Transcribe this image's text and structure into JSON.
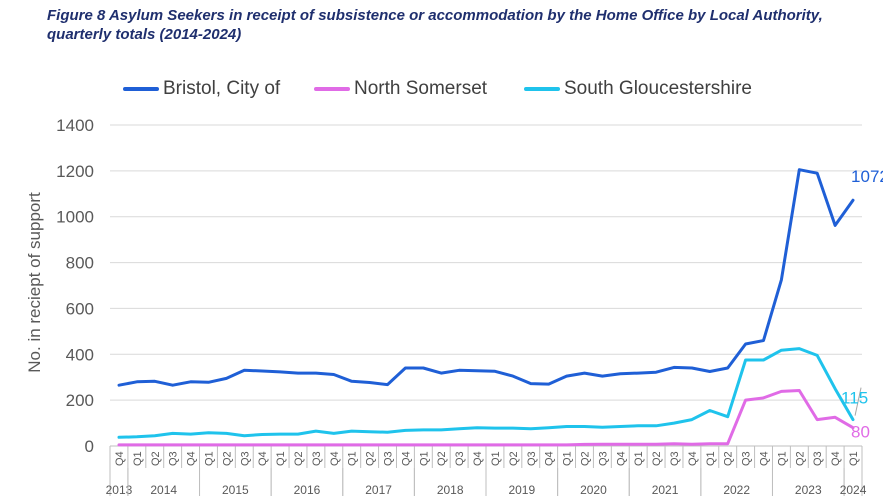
{
  "title": "Figure 8 Asylum Seekers in receipt of subsistence or accommodation by the Home Office by Local Authority, quarterly totals (2014-2024)",
  "chart_data": {
    "type": "line",
    "title": "Figure 8 Asylum Seekers in receipt of subsistence or accommodation by the Home Office by Local Authority, quarterly totals (2014-2024)",
    "ylabel": "No. in reciept of support",
    "xlabel": "",
    "ylim": [
      0,
      1400
    ],
    "yticks": [
      0,
      200,
      400,
      600,
      800,
      1000,
      1200,
      1400
    ],
    "grid": true,
    "legend_position": "top",
    "quarters": [
      "Q4",
      "Q1",
      "Q2",
      "Q3",
      "Q4",
      "Q1",
      "Q2",
      "Q3",
      "Q4",
      "Q1",
      "Q2",
      "Q3",
      "Q4",
      "Q1",
      "Q2",
      "Q3",
      "Q4",
      "Q1",
      "Q2",
      "Q3",
      "Q4",
      "Q1",
      "Q2",
      "Q3",
      "Q4",
      "Q1",
      "Q2",
      "Q3",
      "Q4",
      "Q1",
      "Q2",
      "Q3",
      "Q4",
      "Q1",
      "Q2",
      "Q3",
      "Q4",
      "Q1",
      "Q2",
      "Q3",
      "Q4",
      "Q1"
    ],
    "years": [
      {
        "label": "2013",
        "start": 0,
        "end": 0
      },
      {
        "label": "2014",
        "start": 1,
        "end": 4
      },
      {
        "label": "2015",
        "start": 5,
        "end": 8
      },
      {
        "label": "2016",
        "start": 9,
        "end": 12
      },
      {
        "label": "2017",
        "start": 13,
        "end": 16
      },
      {
        "label": "2018",
        "start": 17,
        "end": 20
      },
      {
        "label": "2019",
        "start": 21,
        "end": 24
      },
      {
        "label": "2020",
        "start": 25,
        "end": 28
      },
      {
        "label": "2021",
        "start": 29,
        "end": 32
      },
      {
        "label": "2022",
        "start": 33,
        "end": 36
      },
      {
        "label": "2023",
        "start": 37,
        "end": 40
      },
      {
        "label": "2024",
        "start": 41,
        "end": 41
      }
    ],
    "series": [
      {
        "name": "Bristol, City of",
        "color": "#1f5fd6",
        "values": [
          265,
          280,
          282,
          265,
          280,
          278,
          295,
          330,
          327,
          323,
          318,
          318,
          312,
          282,
          277,
          268,
          340,
          340,
          318,
          330,
          328,
          326,
          305,
          272,
          270,
          305,
          318,
          305,
          315,
          318,
          322,
          343,
          340,
          325,
          340,
          445,
          460,
          725,
          1205,
          1190,
          962,
          1072
        ],
        "end_label": "1072"
      },
      {
        "name": "North Somerset",
        "color": "#e06be6",
        "values": [
          5,
          5,
          5,
          5,
          5,
          5,
          5,
          5,
          5,
          5,
          5,
          5,
          5,
          5,
          5,
          5,
          5,
          5,
          5,
          5,
          5,
          5,
          5,
          5,
          5,
          5,
          7,
          8,
          8,
          8,
          8,
          10,
          8,
          10,
          10,
          200,
          210,
          238,
          242,
          115,
          125,
          80
        ],
        "end_label": "80"
      },
      {
        "name": "South Gloucestershire",
        "color": "#1fc3ec",
        "values": [
          38,
          40,
          45,
          55,
          52,
          58,
          55,
          45,
          50,
          52,
          52,
          65,
          55,
          65,
          62,
          60,
          68,
          70,
          70,
          75,
          80,
          78,
          78,
          75,
          80,
          85,
          85,
          82,
          85,
          88,
          88,
          100,
          115,
          155,
          128,
          375,
          375,
          418,
          425,
          395,
          250,
          115
        ],
        "end_label": "115"
      }
    ]
  }
}
